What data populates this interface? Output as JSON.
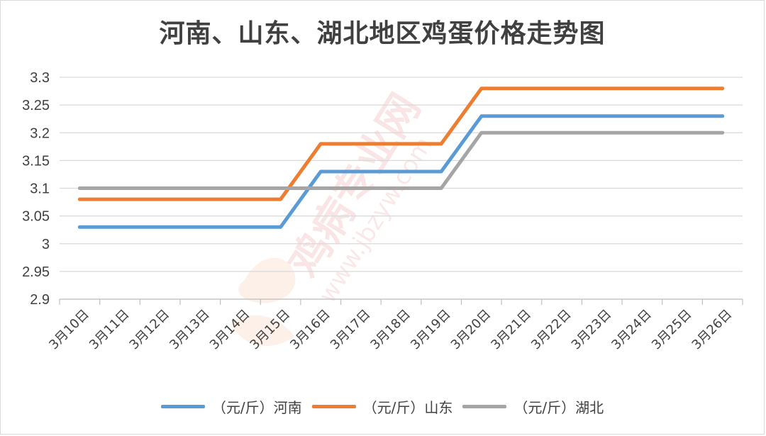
{
  "chart_data": {
    "type": "line",
    "title": "河南、山东、湖北地区鸡蛋价格走势图",
    "categories": [
      "3月10日",
      "3月11日",
      "3月12日",
      "3月13日",
      "3月14日",
      "3月15日",
      "3月16日",
      "3月17日",
      "3月18日",
      "3月19日",
      "3月20日",
      "3月21日",
      "3月22日",
      "3月23日",
      "3月24日",
      "3月25日",
      "3月26日"
    ],
    "ylim": [
      2.9,
      3.3
    ],
    "yticks": [
      "2.9",
      "2.95",
      "3",
      "3.05",
      "3.1",
      "3.15",
      "3.2",
      "3.25",
      "3.3"
    ],
    "grid": true,
    "legend_position": "bottom",
    "series": [
      {
        "name": "（元/斤）河南",
        "color": "#5b9bd5",
        "values": [
          3.03,
          3.03,
          3.03,
          3.03,
          3.03,
          3.03,
          3.13,
          3.13,
          3.13,
          3.13,
          3.23,
          3.23,
          3.23,
          3.23,
          3.23,
          3.23,
          3.23
        ]
      },
      {
        "name": "（元/斤）山东",
        "color": "#ed7d31",
        "values": [
          3.08,
          3.08,
          3.08,
          3.08,
          3.08,
          3.08,
          3.18,
          3.18,
          3.18,
          3.18,
          3.28,
          3.28,
          3.28,
          3.28,
          3.28,
          3.28,
          3.28
        ]
      },
      {
        "name": "（元/斤）湖北",
        "color": "#a5a5a5",
        "values": [
          3.1,
          3.1,
          3.1,
          3.1,
          3.1,
          3.1,
          3.1,
          3.1,
          3.1,
          3.1,
          3.2,
          3.2,
          3.2,
          3.2,
          3.2,
          3.2,
          3.2
        ]
      }
    ]
  },
  "watermark": {
    "main": "鸡病专业网",
    "url": "www.jbzyw.com",
    "icon": "rooster-logo-icon"
  }
}
